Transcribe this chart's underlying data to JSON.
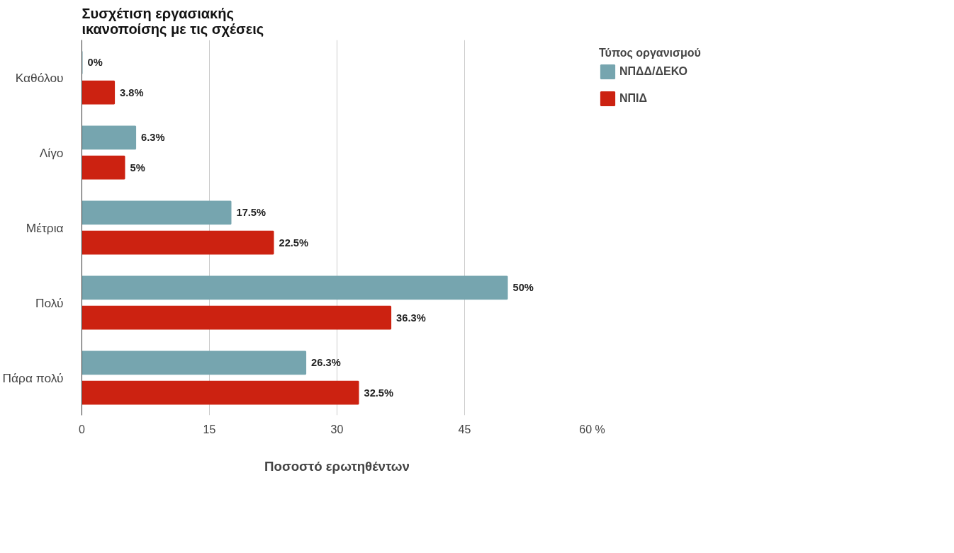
{
  "chart_data": {
    "type": "bar",
    "orientation": "horizontal",
    "title": "Συσχέτιση εργασιακής\nικανοποίσης με τις σχέσεις",
    "xlabel": "Ποσοστό ερωτηθέντων",
    "legend_title": "Τύπος οργανισμού",
    "categories": [
      "Καθόλου",
      "Λίγο",
      "Μέτρια",
      "Πολύ",
      "Πάρα πολύ"
    ],
    "series": [
      {
        "name": "ΝΠΔΔ/ΔΕΚΟ",
        "color": "#76a5af",
        "values": [
          0,
          6.3,
          17.5,
          50,
          26.3
        ],
        "value_labels": [
          "0%",
          "6.3%",
          "17.5%",
          "50%",
          "26.3%"
        ]
      },
      {
        "name": "ΝΠΙΔ",
        "color": "#cc2211",
        "values": [
          3.8,
          5,
          22.5,
          36.3,
          32.5
        ],
        "value_labels": [
          "3.8%",
          "5%",
          "22.5%",
          "36.3%",
          "32.5%"
        ]
      }
    ],
    "xlim": [
      0,
      60
    ],
    "xticks": [
      0,
      15,
      30,
      45,
      {
        "value": 60,
        "label": "60 %"
      }
    ],
    "grid": "x",
    "legend": "top right"
  }
}
